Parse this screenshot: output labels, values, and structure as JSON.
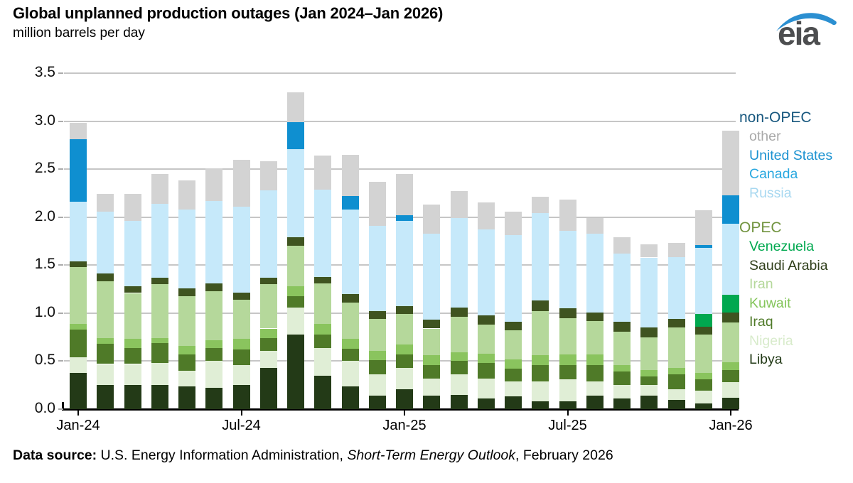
{
  "header": {
    "title": "Global unplanned production outages (Jan 2024–Jan 2026)",
    "subtitle": "million barrels per day",
    "logo_text": "eia"
  },
  "chart_data": {
    "type": "bar",
    "stacked": true,
    "title": "Global unplanned production outages (Jan 2024–Jan 2026)",
    "ylabel": "million barrels per day",
    "xlabel": "",
    "ylim": [
      0,
      3.5
    ],
    "grid": true,
    "legend_position": "right",
    "y_tick_values": [
      0.0,
      0.5,
      1.0,
      1.5,
      2.0,
      2.5,
      3.0,
      3.5
    ],
    "y_tick_labels": [
      "0.0",
      "0.5",
      "1.0",
      "1.5",
      "2.0",
      "2.5",
      "3.0",
      "3.5"
    ],
    "x_tick_labels": [
      "Jan-24",
      "Jul-24",
      "Jan-25",
      "Jul-25",
      "Jan-26"
    ],
    "x_tick_month_index": [
      0,
      6,
      12,
      18,
      24
    ],
    "categories": [
      "Jan-24",
      "Feb-24",
      "Mar-24",
      "Apr-24",
      "May-24",
      "Jun-24",
      "Jul-24",
      "Aug-24",
      "Sep-24",
      "Oct-24",
      "Nov-24",
      "Dec-24",
      "Jan-25",
      "Feb-25",
      "Mar-25",
      "Apr-25",
      "May-25",
      "Jun-25",
      "Jul-25",
      "Aug-25",
      "Sep-25",
      "Oct-25",
      "Nov-25",
      "Dec-25",
      "Jan-26"
    ],
    "series": [
      {
        "name": "Libya",
        "group": "OPEC",
        "color": "#233a17",
        "values": [
          0.38,
          0.25,
          0.25,
          0.25,
          0.24,
          0.22,
          0.25,
          0.43,
          0.78,
          0.35,
          0.24,
          0.14,
          0.21,
          0.14,
          0.15,
          0.11,
          0.13,
          0.08,
          0.08,
          0.14,
          0.11,
          0.14,
          0.1,
          0.06,
          0.12
        ]
      },
      {
        "name": "Nigeria",
        "group": "OPEC",
        "color": "#e0eed6",
        "values": [
          0.16,
          0.22,
          0.22,
          0.23,
          0.16,
          0.28,
          0.21,
          0.18,
          0.28,
          0.29,
          0.26,
          0.22,
          0.22,
          0.18,
          0.21,
          0.21,
          0.16,
          0.21,
          0.23,
          0.15,
          0.14,
          0.11,
          0.11,
          0.13,
          0.16
        ]
      },
      {
        "name": "Iraq",
        "group": "OPEC",
        "color": "#4f7a28",
        "values": [
          0.29,
          0.21,
          0.17,
          0.21,
          0.17,
          0.14,
          0.16,
          0.13,
          0.12,
          0.14,
          0.13,
          0.15,
          0.14,
          0.14,
          0.14,
          0.16,
          0.13,
          0.17,
          0.15,
          0.17,
          0.14,
          0.09,
          0.15,
          0.12,
          0.13
        ]
      },
      {
        "name": "Kuwait",
        "group": "OPEC",
        "color": "#8ac45e",
        "values": [
          0.06,
          0.06,
          0.09,
          0.05,
          0.09,
          0.08,
          0.11,
          0.1,
          0.1,
          0.11,
          0.1,
          0.1,
          0.1,
          0.1,
          0.09,
          0.1,
          0.1,
          0.1,
          0.11,
          0.11,
          0.07,
          0.07,
          0.07,
          0.07,
          0.08
        ]
      },
      {
        "name": "Iran",
        "group": "OPEC",
        "color": "#b5d89b",
        "values": [
          0.59,
          0.59,
          0.48,
          0.56,
          0.52,
          0.51,
          0.41,
          0.46,
          0.42,
          0.42,
          0.38,
          0.33,
          0.32,
          0.28,
          0.37,
          0.3,
          0.3,
          0.46,
          0.38,
          0.35,
          0.35,
          0.34,
          0.42,
          0.4,
          0.41
        ]
      },
      {
        "name": "Saudi Arabia",
        "group": "OPEC",
        "color": "#3f5420",
        "values": [
          0.06,
          0.08,
          0.07,
          0.07,
          0.08,
          0.08,
          0.07,
          0.07,
          0.09,
          0.07,
          0.09,
          0.08,
          0.08,
          0.09,
          0.1,
          0.1,
          0.09,
          0.11,
          0.1,
          0.09,
          0.1,
          0.1,
          0.09,
          0.08,
          0.11
        ]
      },
      {
        "name": "Venezuela",
        "group": "OPEC",
        "color": "#00a84f",
        "values": [
          0,
          0,
          0,
          0,
          0,
          0,
          0,
          0,
          0,
          0,
          0,
          0,
          0,
          0,
          0,
          0,
          0,
          0,
          0,
          0,
          0,
          0,
          0,
          0.13,
          0.18
        ]
      },
      {
        "name": "Russia",
        "group": "non-OPEC",
        "color": "#c6e9fa",
        "values": [
          0.62,
          0.65,
          0.68,
          0.77,
          0.82,
          0.86,
          0.9,
          0.91,
          0.92,
          0.91,
          0.88,
          0.89,
          0.89,
          0.9,
          0.93,
          0.89,
          0.9,
          0.91,
          0.81,
          0.82,
          0.71,
          0.73,
          0.64,
          0.69,
          0.74
        ]
      },
      {
        "name": "Canada",
        "group": "non-OPEC",
        "color": "#29a8e0",
        "values": [
          0,
          0,
          0,
          0,
          0,
          0,
          0,
          0,
          0,
          0,
          0,
          0,
          0,
          0,
          0,
          0,
          0,
          0,
          0,
          0,
          0,
          0,
          0,
          0,
          0
        ]
      },
      {
        "name": "United States",
        "group": "non-OPEC",
        "color": "#0f8fd0",
        "values": [
          0.65,
          0,
          0,
          0,
          0,
          0,
          0,
          0,
          0.28,
          0,
          0.14,
          0,
          0.06,
          0,
          0,
          0,
          0,
          0,
          0,
          0,
          0,
          0,
          0,
          0.03,
          0.3
        ]
      },
      {
        "name": "other",
        "group": "non-OPEC",
        "color": "#d3d3d3",
        "values": [
          0.17,
          0.18,
          0.28,
          0.31,
          0.3,
          0.34,
          0.49,
          0.3,
          0.31,
          0.35,
          0.43,
          0.46,
          0.43,
          0.3,
          0.28,
          0.28,
          0.25,
          0.17,
          0.32,
          0.16,
          0.17,
          0.14,
          0.15,
          0.36,
          0.67
        ]
      }
    ]
  },
  "legend": {
    "groups": [
      {
        "label": "non-OPEC",
        "color": "#17577e",
        "items": [
          {
            "label": "other",
            "color": "#a9a9a9"
          },
          {
            "label": "United States",
            "color": "#1b92d1"
          },
          {
            "label": "Canada",
            "color": "#29a8e0"
          },
          {
            "label": "Russia",
            "color": "#a8d8f0"
          }
        ]
      },
      {
        "label": "OPEC",
        "color": "#71933e",
        "items": [
          {
            "label": "Venezuela",
            "color": "#00a84f"
          },
          {
            "label": "Saudi Arabia",
            "color": "#2f3e1a"
          },
          {
            "label": "Iran",
            "color": "#b5d89b"
          },
          {
            "label": "Kuwait",
            "color": "#84c55b"
          },
          {
            "label": "Iraq",
            "color": "#4f7a28"
          },
          {
            "label": "Nigeria",
            "color": "#d8ebcb"
          },
          {
            "label": "Libya",
            "color": "#233a17"
          }
        ]
      }
    ]
  },
  "footer": {
    "source_prefix": "Data source: ",
    "source_text": "U.S. Energy Information Administration, ",
    "source_italic": "Short-Term Energy Outlook",
    "source_suffix": ", February 2026"
  }
}
